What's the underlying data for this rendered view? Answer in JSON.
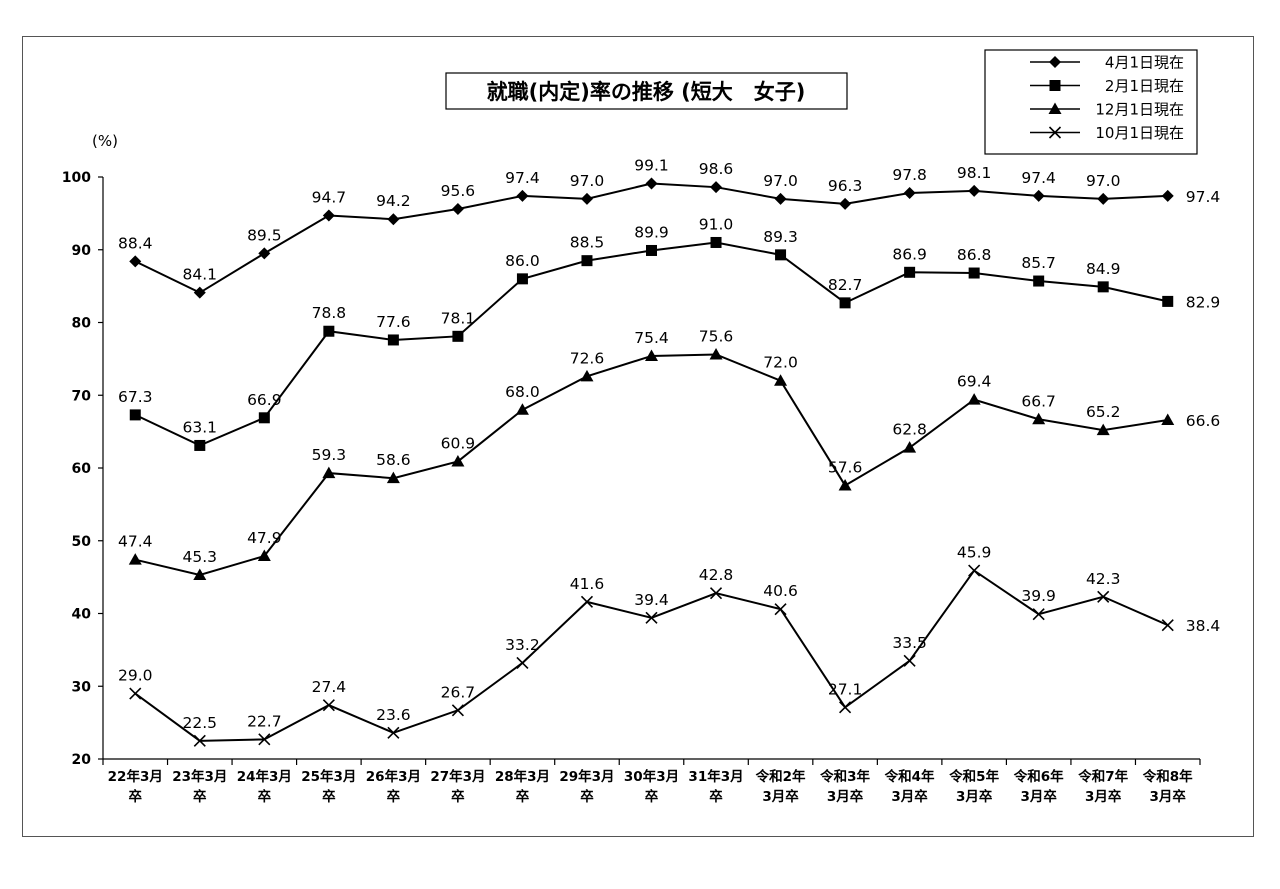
{
  "chart_data": {
    "type": "line",
    "title": "就職(内定)率の推移 (短大　女子)",
    "ylabel": "(%)",
    "ylim": [
      20,
      100
    ],
    "yticks": [
      20,
      30,
      40,
      50,
      60,
      70,
      80,
      90,
      100
    ],
    "grid": false,
    "legend_position": "top-right",
    "categories": [
      [
        "22年3月",
        "卒"
      ],
      [
        "23年3月",
        "卒"
      ],
      [
        "24年3月",
        "卒"
      ],
      [
        "25年3月",
        "卒"
      ],
      [
        "26年3月",
        "卒"
      ],
      [
        "27年3月",
        "卒"
      ],
      [
        "28年3月",
        "卒"
      ],
      [
        "29年3月",
        "卒"
      ],
      [
        "30年3月",
        "卒"
      ],
      [
        "31年3月",
        "卒"
      ],
      [
        "令和2年",
        "3月卒"
      ],
      [
        "令和3年",
        "3月卒"
      ],
      [
        "令和4年",
        "3月卒"
      ],
      [
        "令和5年",
        "3月卒"
      ],
      [
        "令和6年",
        "3月卒"
      ],
      [
        "令和7年",
        "3月卒"
      ],
      [
        "令和8年",
        "3月卒"
      ]
    ],
    "series": [
      {
        "name": "4月1日現在",
        "marker": "diamond",
        "values": [
          88.4,
          84.1,
          89.5,
          94.7,
          94.2,
          95.6,
          97.4,
          97.0,
          99.1,
          98.6,
          97.0,
          96.3,
          97.8,
          98.1,
          97.4,
          97.0,
          97.4
        ],
        "labels": [
          "88.4",
          "84.1",
          "89.5",
          "94.7",
          "94.2",
          "95.6",
          "97.4",
          "97.0",
          "99.1",
          "98.6",
          "97.0",
          "96.3",
          "97.8",
          "98.1",
          "97.4",
          "97.0",
          "97.4"
        ]
      },
      {
        "name": "2月1日現在",
        "marker": "square",
        "values": [
          67.3,
          63.1,
          66.9,
          78.8,
          77.6,
          78.1,
          86.0,
          88.5,
          89.9,
          91.0,
          89.3,
          82.7,
          86.9,
          86.8,
          85.7,
          84.9,
          82.9
        ],
        "labels": [
          "67.3",
          "63.1",
          "66.9",
          "78.8",
          "77.6",
          "78.1",
          "86.0",
          "88.5",
          "89.9",
          "91.0",
          "89.3",
          "82.7",
          "86.9",
          "86.8",
          "85.7",
          "84.9",
          "82.9"
        ]
      },
      {
        "name": "12月1日現在",
        "marker": "triangle",
        "values": [
          47.4,
          45.3,
          47.9,
          59.3,
          58.6,
          60.9,
          68.0,
          72.6,
          75.4,
          75.6,
          72.0,
          57.6,
          62.8,
          69.4,
          66.7,
          65.2,
          66.6
        ],
        "labels": [
          "47.4",
          "45.3",
          "47.9",
          "59.3",
          "58.6",
          "60.9",
          "68.0",
          "72.6",
          "75.4",
          "75.6",
          "72.0",
          "57.6",
          "62.8",
          "69.4",
          "66.7",
          "65.2",
          "66.6"
        ]
      },
      {
        "name": "10月1日現在",
        "marker": "x",
        "values": [
          29.0,
          22.5,
          22.7,
          27.4,
          23.6,
          26.7,
          33.2,
          41.6,
          39.4,
          42.8,
          40.6,
          27.1,
          33.5,
          45.9,
          39.9,
          42.3,
          38.4
        ],
        "labels": [
          "29.0",
          "22.5",
          "22.7",
          "27.4",
          "23.6",
          "26.7",
          "33.2",
          "41.6",
          "39.4",
          "42.8",
          "40.6",
          "27.1",
          "33.5",
          "45.9",
          "39.9",
          "42.3",
          "38.4"
        ]
      }
    ]
  }
}
